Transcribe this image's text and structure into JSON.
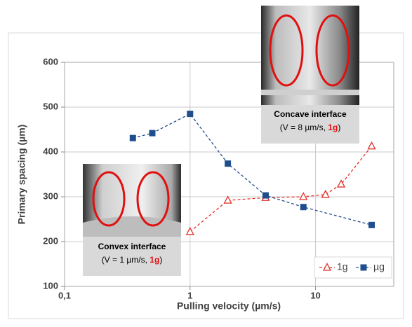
{
  "chart_data": {
    "type": "line",
    "x_label": "Pulling velocity (µm/s)",
    "y_label": "Primary spacing (µm)",
    "xlim": [
      0.1,
      42
    ],
    "ylim": [
      100,
      600
    ],
    "xlog": true,
    "grid": true,
    "xticks": [
      {
        "value": 0.1,
        "label": "0,1"
      },
      1,
      10
    ],
    "yticks": [
      100,
      200,
      300,
      400,
      500,
      600
    ],
    "legend": "lower right",
    "series": [
      {
        "name": "1g",
        "color": "#e0302a",
        "marker": "triangle-open",
        "x": [
          1,
          2,
          4,
          8,
          12,
          16,
          28
        ],
        "values": [
          222,
          292,
          298,
          300,
          305,
          328,
          413
        ]
      },
      {
        "name": "µg",
        "color": "#1f4e8c",
        "marker": "square",
        "x": [
          0.35,
          0.5,
          1,
          2,
          4,
          8,
          28
        ],
        "values": [
          431,
          442,
          485,
          374,
          303,
          277,
          237
        ]
      }
    ],
    "annotations": [
      {
        "title": "Concave interface",
        "detail": "(V = 8 µm/s, ",
        "highlight": "1g",
        "close": ")"
      },
      {
        "title": "Convex interface",
        "detail": "(V = 1 µm/s, ",
        "highlight": "1g",
        "close": ")"
      }
    ]
  }
}
